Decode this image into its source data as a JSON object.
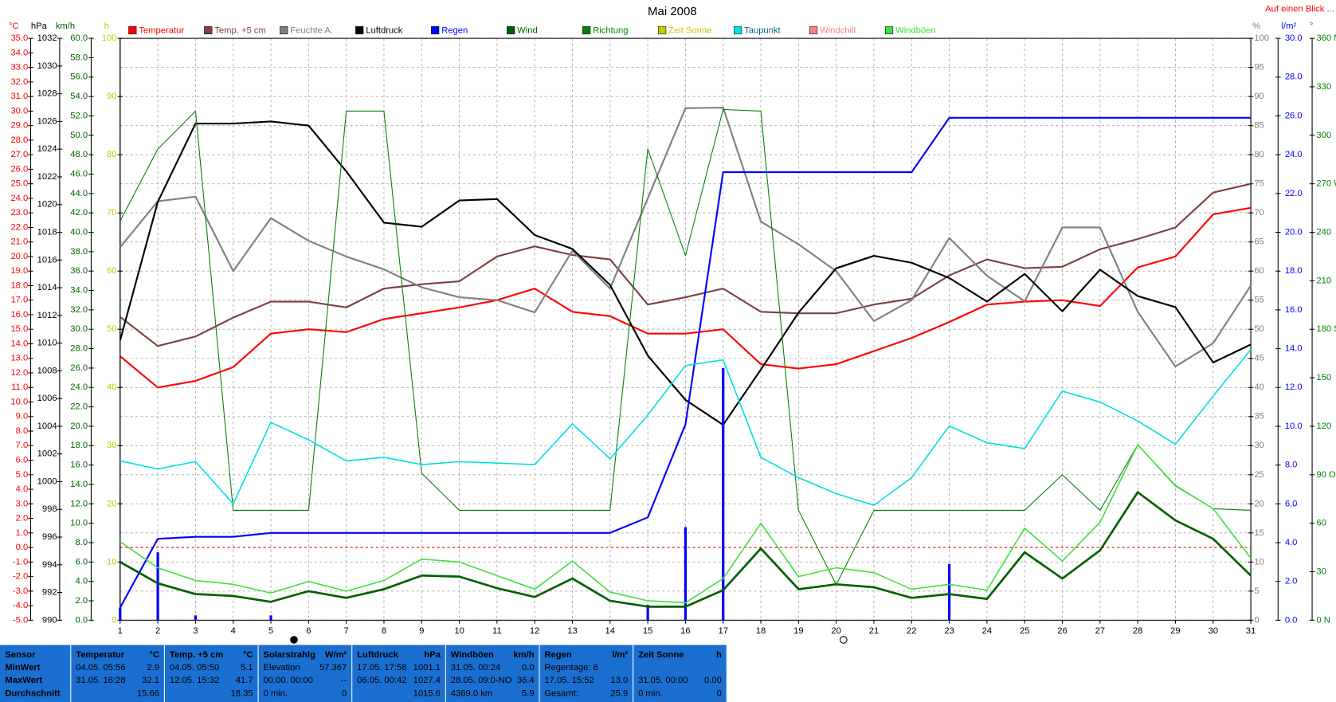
{
  "chart_data": {
    "type": "line",
    "title": "Mai 2008",
    "note": "Auf einen Blick ...",
    "categories": [
      "1",
      "2",
      "3",
      "4",
      "5",
      "6",
      "7",
      "8",
      "9",
      "10",
      "11",
      "12",
      "13",
      "14",
      "15",
      "16",
      "17",
      "18",
      "19",
      "20",
      "21",
      "22",
      "23",
      "24",
      "25",
      "26",
      "27",
      "28",
      "29",
      "30",
      "31"
    ],
    "grid": true,
    "axes": [
      {
        "label": "°C",
        "color": "#ff0000",
        "ylim": [
          -5,
          35
        ],
        "yticks": [
          {
            "value": -5,
            "label": "-5.0"
          },
          {
            "value": -4,
            "label": "-4.0"
          },
          {
            "value": -3,
            "label": "-3.0"
          },
          {
            "value": -2,
            "label": "-2.0"
          },
          {
            "value": -1,
            "label": "-1.0"
          },
          {
            "value": 0,
            "label": "0.0"
          },
          {
            "value": 1,
            "label": "1.0"
          },
          {
            "value": 2,
            "label": "2.0"
          },
          {
            "value": 3,
            "label": "3.0"
          },
          {
            "value": 4,
            "label": "4.0"
          },
          {
            "value": 5,
            "label": "5.0"
          },
          {
            "value": 6,
            "label": "6.0"
          },
          {
            "value": 7,
            "label": "7.0"
          },
          {
            "value": 8,
            "label": "8.0"
          },
          {
            "value": 9,
            "label": "9.0"
          },
          {
            "value": 10,
            "label": "10.0"
          },
          {
            "value": 11,
            "label": "11.0"
          },
          {
            "value": 12,
            "label": "12.0"
          },
          {
            "value": 13,
            "label": "13.0"
          },
          {
            "value": 14,
            "label": "14.0"
          },
          {
            "value": 15,
            "label": "15.0"
          },
          {
            "value": 16,
            "label": "16.0"
          },
          {
            "value": 17,
            "label": "17.0"
          },
          {
            "value": 18,
            "label": "18.0"
          },
          {
            "value": 19,
            "label": "19.0"
          },
          {
            "value": 20,
            "label": "20.0"
          },
          {
            "value": 21,
            "label": "21.0"
          },
          {
            "value": 22,
            "label": "22.0"
          },
          {
            "value": 23,
            "label": "23.0"
          },
          {
            "value": 24,
            "label": "24.0"
          },
          {
            "value": 25,
            "label": "25.0"
          },
          {
            "value": 26,
            "label": "26.0"
          },
          {
            "value": 27,
            "label": "27.0"
          },
          {
            "value": 28,
            "label": "28.0"
          },
          {
            "value": 29,
            "label": "29.0"
          },
          {
            "value": 30,
            "label": "30.0"
          },
          {
            "value": 31,
            "label": "31.0"
          },
          {
            "value": 32,
            "label": "32.0"
          },
          {
            "value": 33,
            "label": "33.0"
          },
          {
            "value": 34,
            "label": "34.0"
          },
          {
            "value": 35,
            "label": "35.0"
          }
        ]
      },
      {
        "label": "hPa",
        "color": "#000000",
        "ylim": [
          990,
          1032
        ],
        "yticks": [
          990,
          992,
          994,
          996,
          998,
          1000,
          1002,
          1004,
          1006,
          1008,
          1010,
          1012,
          1014,
          1016,
          1018,
          1020,
          1022,
          1024,
          1026,
          1028,
          1030,
          1032
        ]
      },
      {
        "label": "km/h",
        "color": "#006400",
        "ylim": [
          0,
          60
        ],
        "yticks": [
          {
            "value": 0,
            "label": "0.0"
          },
          {
            "value": 2,
            "label": "2.0"
          },
          {
            "value": 4,
            "label": "4.0"
          },
          {
            "value": 6,
            "label": "6.0"
          },
          {
            "value": 8,
            "label": "8.0"
          },
          {
            "value": 10,
            "label": "10.0"
          },
          {
            "value": 12,
            "label": "12.0"
          },
          {
            "value": 14,
            "label": "14.0"
          },
          {
            "value": 16,
            "label": "16.0"
          },
          {
            "value": 18,
            "label": "18.0"
          },
          {
            "value": 20,
            "label": "20.0"
          },
          {
            "value": 22,
            "label": "22.0"
          },
          {
            "value": 24,
            "label": "24.0"
          },
          {
            "value": 26,
            "label": "26.0"
          },
          {
            "value": 28,
            "label": "28.0"
          },
          {
            "value": 30,
            "label": "30.0"
          },
          {
            "value": 32,
            "label": "32.0"
          },
          {
            "value": 34,
            "label": "34.0"
          },
          {
            "value": 36,
            "label": "36.0"
          },
          {
            "value": 38,
            "label": "38.0"
          },
          {
            "value": 40,
            "label": "40.0"
          },
          {
            "value": 42,
            "label": "42.0"
          },
          {
            "value": 44,
            "label": "44.0"
          },
          {
            "value": 46,
            "label": "46.0"
          },
          {
            "value": 48,
            "label": "48.0"
          },
          {
            "value": 50,
            "label": "50.0"
          },
          {
            "value": 52,
            "label": "52.0"
          },
          {
            "value": 54,
            "label": "54.0"
          },
          {
            "value": 56,
            "label": "56.0"
          },
          {
            "value": 58,
            "label": "58.0"
          },
          {
            "value": 60,
            "label": "60.0"
          }
        ]
      },
      {
        "label": "h",
        "color": "#c8c800",
        "ylim": [
          0,
          100
        ],
        "yticks": [
          0,
          10,
          20,
          30,
          40,
          50,
          60,
          70,
          80,
          90,
          100
        ]
      },
      {
        "label": "%",
        "color": "#808080",
        "ylim": [
          0,
          100
        ],
        "yticks": [
          0,
          5,
          10,
          15,
          20,
          25,
          30,
          35,
          40,
          45,
          50,
          55,
          60,
          65,
          70,
          75,
          80,
          85,
          90,
          95,
          100
        ],
        "grid": true
      },
      {
        "label": "l/m²",
        "color": "#0000ff",
        "ylim": [
          0,
          30
        ],
        "yticks": [
          {
            "value": 0,
            "label": "0.0"
          },
          {
            "value": 2,
            "label": "2.0"
          },
          {
            "value": 4,
            "label": "4.0"
          },
          {
            "value": 6,
            "label": "6.0"
          },
          {
            "value": 8,
            "label": "8.0"
          },
          {
            "value": 10,
            "label": "10.0"
          },
          {
            "value": 12,
            "label": "12.0"
          },
          {
            "value": 14,
            "label": "14.0"
          },
          {
            "value": 16,
            "label": "16.0"
          },
          {
            "value": 18,
            "label": "18.0"
          },
          {
            "value": 20,
            "label": "20.0"
          },
          {
            "value": 22,
            "label": "22.0"
          },
          {
            "value": 24,
            "label": "24.0"
          },
          {
            "value": 26,
            "label": "26.0"
          },
          {
            "value": 28,
            "label": "28.0"
          },
          {
            "value": 30,
            "label": "30.0"
          }
        ]
      },
      {
        "label": "°",
        "color": "#008000",
        "ylim": [
          0,
          360
        ],
        "yticks": [
          {
            "value": 0,
            "label": "0 N"
          },
          30,
          60,
          {
            "value": 90,
            "label": "90 O"
          },
          120,
          150,
          {
            "value": 180,
            "label": "180 S"
          },
          210,
          240,
          {
            "value": 270,
            "label": "270 W"
          },
          300,
          330,
          {
            "value": 360,
            "label": "360 N"
          }
        ]
      }
    ],
    "series": [
      {
        "name": "Temperatur",
        "color": "#ff0000",
        "axis": 0,
        "width": 2,
        "values": [
          13.15,
          11.0,
          11.45,
          12.4,
          14.7,
          15.0,
          14.8,
          15.7,
          16.1,
          16.5,
          17.0,
          17.8,
          16.2,
          15.9,
          14.7,
          14.7,
          15.0,
          12.6,
          12.3,
          12.6,
          13.5,
          14.4,
          15.5,
          16.7,
          16.9,
          17.0,
          16.6,
          19.25,
          20.0,
          22.9,
          23.35
        ]
      },
      {
        "name": "Temp. +5 cm",
        "color": "#804040",
        "axis": 0,
        "width": 2,
        "values": [
          15.85,
          13.85,
          14.5,
          15.8,
          16.9,
          16.9,
          16.5,
          17.8,
          18.1,
          18.3,
          20.0,
          20.7,
          20.1,
          19.8,
          16.7,
          17.2,
          17.8,
          16.2,
          16.1,
          16.1,
          16.7,
          17.1,
          18.7,
          19.8,
          19.2,
          19.3,
          20.5,
          21.2,
          22.0,
          24.4,
          25.0
        ]
      },
      {
        "name": "Feuchte A.",
        "color": "#808080",
        "axis": 4,
        "width": 2,
        "values": [
          64.1,
          72.0,
          72.8,
          60.0,
          69.1,
          65.2,
          62.5,
          60.3,
          57.2,
          55.5,
          55.0,
          52.9,
          63.5,
          57.0,
          72.5,
          88.0,
          88.1,
          68.5,
          64.6,
          60.0,
          51.4,
          55.0,
          65.7,
          59.2,
          54.8,
          67.5,
          67.5,
          53.0,
          43.6,
          47.6,
          57.5
        ]
      },
      {
        "name": "Luftdruck",
        "color": "#000000",
        "axis": 1,
        "width": 2,
        "values": [
          1010.2,
          1020.2,
          1025.85,
          1025.85,
          1026.0,
          1025.7,
          1022.4,
          1018.7,
          1018.4,
          1020.3,
          1020.4,
          1017.8,
          1016.8,
          1014.2,
          1009.1,
          1005.9,
          1004.1,
          1008.1,
          1012.2,
          1015.4,
          1016.3,
          1015.8,
          1014.7,
          1013.0,
          1015.0,
          1012.3,
          1015.3,
          1013.4,
          1012.6,
          1008.6,
          1009.9
        ]
      },
      {
        "name": "Regen",
        "color": "#0000ff",
        "axis": 5,
        "width": 2,
        "values": [
          0.65,
          4.2,
          4.3,
          4.3,
          4.5,
          4.5,
          4.5,
          4.5,
          4.5,
          4.5,
          4.5,
          4.5,
          4.5,
          4.5,
          5.3,
          10.1,
          23.1,
          23.1,
          23.1,
          23.1,
          23.1,
          23.1,
          25.9,
          25.9,
          25.9,
          25.9,
          25.9,
          25.9,
          25.9,
          25.9,
          25.9
        ],
        "bar_values": [
          0.65,
          3.5,
          0.25,
          null,
          0.25,
          null,
          null,
          null,
          null,
          null,
          null,
          null,
          null,
          null,
          0.8,
          4.8,
          13.0,
          null,
          null,
          null,
          null,
          null,
          2.9,
          null,
          null,
          null,
          null,
          null,
          null,
          null,
          null
        ]
      },
      {
        "name": "Wind",
        "color": "#006000",
        "axis": 2,
        "width": 2.5,
        "values": [
          6.0,
          3.8,
          2.7,
          2.5,
          1.9,
          3.0,
          2.3,
          3.2,
          4.6,
          4.5,
          3.3,
          2.4,
          4.3,
          2.0,
          1.4,
          1.4,
          3.1,
          7.4,
          3.2,
          3.7,
          3.4,
          2.3,
          2.7,
          2.2,
          7.0,
          4.3,
          7.2,
          13.2,
          10.3,
          8.4,
          4.6
        ]
      },
      {
        "name": "Richtung",
        "color": "#008000",
        "axis": 6,
        "width": 1,
        "values": [
          247,
          291.5,
          315,
          68,
          68,
          68,
          315,
          315,
          91,
          68,
          68,
          68,
          68,
          68,
          291.5,
          225.6,
          316,
          315,
          68,
          22,
          68,
          68,
          68,
          68,
          68,
          90,
          68,
          108.6,
          83,
          69,
          68
        ]
      },
      {
        "name": "Zeit Sonne",
        "color": "#c8c800",
        "axis": 3,
        "width": 1,
        "values": [
          null,
          null,
          null,
          null,
          null,
          null,
          null,
          null,
          null,
          null,
          null,
          null,
          null,
          null,
          null,
          null,
          null,
          null,
          null,
          null,
          null,
          null,
          null,
          null,
          null,
          null,
          null,
          null,
          null,
          null,
          null
        ]
      },
      {
        "name": "Taupunkt",
        "color": "#00e0e0",
        "axis": 0,
        "width": 1.5,
        "values": [
          5.95,
          5.4,
          5.9,
          3.0,
          8.6,
          7.4,
          5.95,
          6.2,
          5.7,
          5.9,
          5.8,
          5.7,
          8.5,
          6.1,
          9.1,
          12.5,
          12.9,
          6.2,
          4.8,
          3.7,
          2.9,
          4.8,
          8.35,
          7.2,
          6.8,
          10.75,
          10.0,
          8.7,
          7.1,
          10.4,
          13.6
        ]
      },
      {
        "name": "Windchill",
        "color": "#ff8080",
        "axis": 0,
        "width": 1,
        "values": [
          null,
          null,
          null,
          null,
          null,
          null,
          null,
          null,
          null,
          null,
          null,
          null,
          null,
          null,
          null,
          null,
          null,
          null,
          null,
          null,
          null,
          null,
          null,
          null,
          null,
          null,
          null,
          null,
          null,
          null,
          null
        ]
      },
      {
        "name": "Windböen",
        "color": "#40e040",
        "axis": 2,
        "width": 1.5,
        "values": [
          8.1,
          5.4,
          4.1,
          3.7,
          2.8,
          4.0,
          3.0,
          4.1,
          6.3,
          6.0,
          4.6,
          3.2,
          6.1,
          2.9,
          2.0,
          1.8,
          4.3,
          10.0,
          4.5,
          5.4,
          4.9,
          3.2,
          3.7,
          3.1,
          9.5,
          6.1,
          10.1,
          18.1,
          13.9,
          11.5,
          6.4
        ]
      }
    ]
  },
  "stats_table": {
    "panels": [
      {
        "title": "Sensor",
        "rows": [
          {
            "label": "MinWert"
          },
          {
            "label": "MaxWert"
          },
          {
            "label": "Durchschnitt"
          }
        ]
      },
      {
        "title": "Temperatur",
        "unit": "°C",
        "rows": [
          {
            "label": "04.05. 05:56",
            "value": "2.9"
          },
          {
            "label": "31.05. 16:28",
            "value": "32.1"
          },
          {
            "value": "15.66"
          }
        ]
      },
      {
        "title": "Temp. +5 cm",
        "unit": "°C",
        "rows": [
          {
            "label": "04.05. 05:50",
            "value": "5.1"
          },
          {
            "label": "12.05. 15:32",
            "value": "41.7"
          },
          {
            "value": "18.35"
          }
        ]
      },
      {
        "title": "Solarstrahlg",
        "unit": "W/m²",
        "rows": [
          {
            "label": "Elevation",
            "value": "57.367"
          },
          {
            "label": "00.00. 00:00",
            "value": "--"
          },
          {
            "label": "0 min.",
            "value": "0"
          }
        ]
      },
      {
        "title": "Luftdruck",
        "unit": "hPa",
        "rows": [
          {
            "label": "17.05. 17:58",
            "value": "1001.1"
          },
          {
            "label": "06.05. 00:42",
            "value": "1027.4"
          },
          {
            "value": "1015.6"
          }
        ]
      },
      {
        "title": "Windböen",
        "unit": "km/h",
        "rows": [
          {
            "label": "31.05. 00:24",
            "value": "0.0"
          },
          {
            "label": "28.05. 09:0-NO",
            "value": "36.4"
          },
          {
            "label": "4369.0 km",
            "value": "5.9"
          }
        ]
      },
      {
        "title": "Regen",
        "unit": "l/m²",
        "rows": [
          {
            "label": "Regentage: 8"
          },
          {
            "label": "17.05. 15:52",
            "value": "13.0"
          },
          {
            "label": "Gesamt:",
            "value": "25.9"
          }
        ]
      },
      {
        "title": "Zeit Sonne",
        "unit": "h",
        "rows": [
          null,
          {
            "label": "31.05. 00:00",
            "value": "0.00"
          },
          {
            "label": "0 min.",
            "value": "0"
          }
        ]
      }
    ]
  }
}
